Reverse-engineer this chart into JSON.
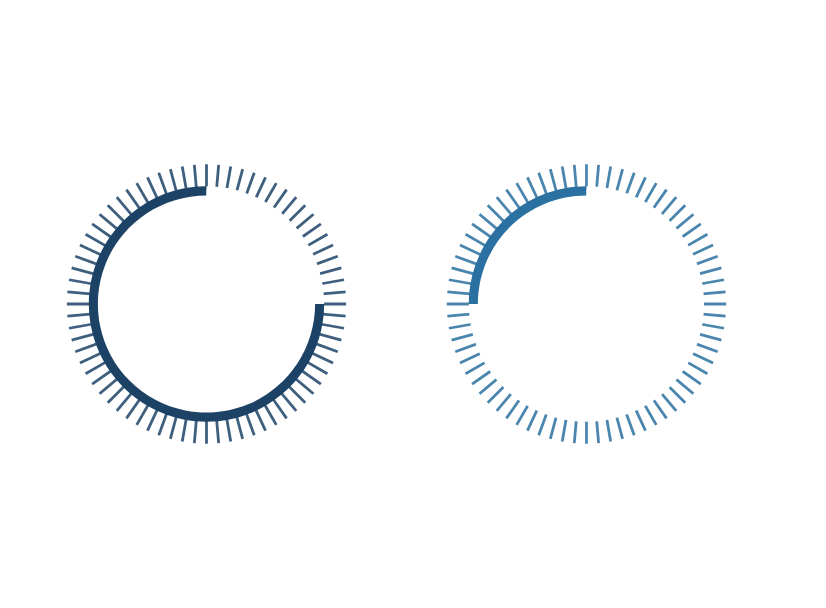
{
  "chart_data": [
    {
      "type": "donut",
      "categories": [
        null,
        null
      ],
      "values": [
        75,
        25
      ],
      "colors": [
        "#1c4366",
        "#ffffff"
      ]
    },
    {
      "type": "donut",
      "categories": [
        null,
        null
      ],
      "values": [
        25,
        75
      ],
      "colors": [
        "#2a70a0",
        "#ffffff"
      ]
    }
  ]
}
